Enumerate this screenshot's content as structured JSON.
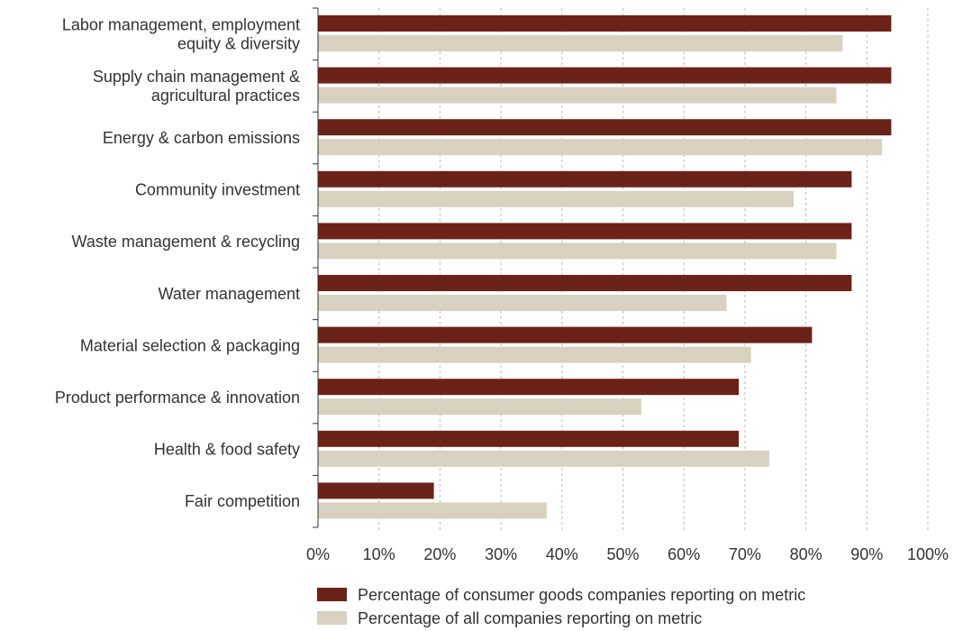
{
  "chart_data": {
    "type": "bar",
    "orientation": "horizontal",
    "categories": [
      [
        "Labor management, employment",
        "equity & diversity"
      ],
      [
        "Supply chain management &",
        "agricultural practices"
      ],
      [
        "Energy & carbon emissions"
      ],
      [
        "Community investment"
      ],
      [
        "Waste management & recycling"
      ],
      [
        "Water management"
      ],
      [
        "Material selection & packaging"
      ],
      [
        "Product performance & innovation"
      ],
      [
        "Health & food safety"
      ],
      [
        "Fair competition"
      ]
    ],
    "series": [
      {
        "name": "Percentage of consumer goods companies reporting on metric",
        "color": "#6b2219",
        "values": [
          94,
          94,
          94,
          87.5,
          87.5,
          87.5,
          81,
          69,
          69,
          19
        ]
      },
      {
        "name": "Percentage of all companies reporting on metric",
        "color": "#d9d1c0",
        "values": [
          86,
          85,
          92.5,
          78,
          85,
          67,
          71,
          53,
          74,
          37.5
        ]
      }
    ],
    "xlim": [
      0,
      100
    ],
    "xticks": [
      "0%",
      "10%",
      "20%",
      "30%",
      "40%",
      "50%",
      "60%",
      "70%",
      "80%",
      "90%",
      "100%"
    ],
    "grid": "vertical dashed",
    "legend_placement": "bottom"
  }
}
